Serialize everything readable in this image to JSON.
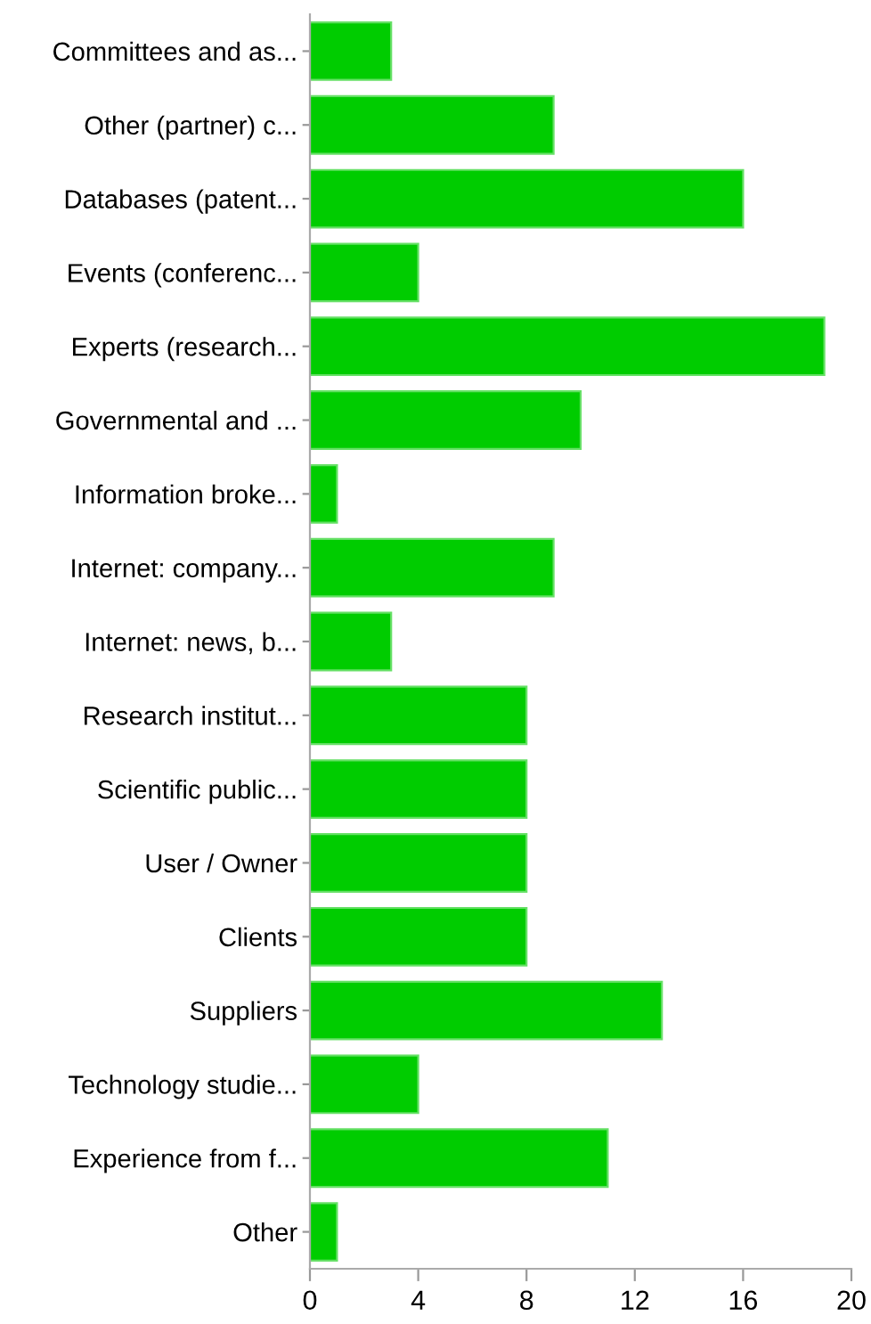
{
  "chart_data": {
    "type": "bar",
    "orientation": "horizontal",
    "categories": [
      "Committees and as...",
      "Other (partner) c...",
      "Databases (patent...",
      "Events (conferenc...",
      "Experts (research...",
      "Governmental and ...",
      "Information broke...",
      "Internet: company...",
      "Internet: news, b...",
      "Research institut...",
      "Scientific public...",
      "User / Owner",
      "Clients",
      "Suppliers",
      "Technology studie...",
      "Experience from f...",
      "Other"
    ],
    "values": [
      3,
      9,
      16,
      4,
      19,
      10,
      1,
      9,
      3,
      8,
      8,
      8,
      8,
      13,
      4,
      11,
      1
    ],
    "color": "#00cc00",
    "xlim": [
      0,
      20
    ],
    "xticks": [
      0,
      4,
      8,
      12,
      16,
      20
    ],
    "grid": false,
    "legend": false
  }
}
